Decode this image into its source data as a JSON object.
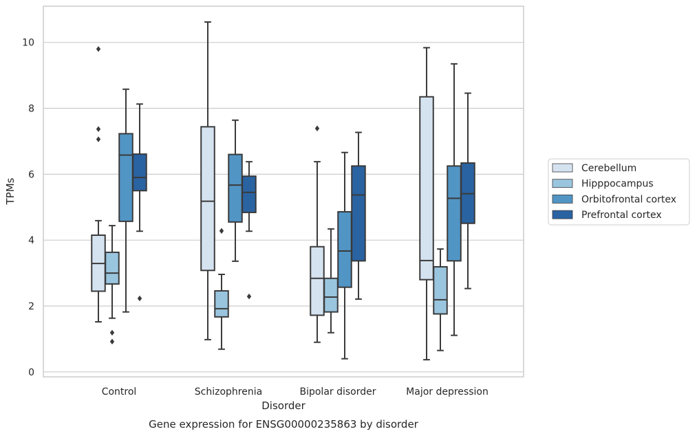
{
  "chart_data": {
    "type": "box",
    "caption": "Gene expression for ENSG00000235863 by disorder",
    "xlabel": "Disorder",
    "ylabel": "TPMs",
    "ylim": [
      -0.15,
      11.1
    ],
    "yticks": [
      0,
      2,
      4,
      6,
      8,
      10
    ],
    "grid": "horizontal",
    "legend_position": "right",
    "categories": [
      "Control",
      "Schizophrenia",
      "Bipolar disorder",
      "Major depression"
    ],
    "series": [
      {
        "name": "Cerebellum",
        "color": "#d5e3f1",
        "boxes": [
          {
            "whislo": 1.52,
            "q1": 2.45,
            "med": 3.29,
            "q3": 4.15,
            "whishi": 4.59,
            "fliers": [
              7.06,
              7.37,
              9.8
            ]
          },
          {
            "whislo": 0.98,
            "q1": 3.08,
            "med": 5.18,
            "q3": 7.44,
            "whishi": 10.62,
            "fliers": []
          },
          {
            "whislo": 0.9,
            "q1": 1.72,
            "med": 2.84,
            "q3": 3.8,
            "whishi": 6.38,
            "fliers": [
              7.39
            ]
          },
          {
            "whislo": 0.37,
            "q1": 2.8,
            "med": 3.38,
            "q3": 8.35,
            "whishi": 9.84,
            "fliers": []
          }
        ]
      },
      {
        "name": "Hipppocampus",
        "color": "#9ac5df",
        "boxes": [
          {
            "whislo": 1.63,
            "q1": 2.67,
            "med": 3.0,
            "q3": 3.63,
            "whishi": 4.44,
            "fliers": [
              0.92,
              1.19
            ]
          },
          {
            "whislo": 0.69,
            "q1": 1.67,
            "med": 1.92,
            "q3": 2.46,
            "whishi": 2.96,
            "fliers": [
              4.28
            ]
          },
          {
            "whislo": 1.19,
            "q1": 1.82,
            "med": 2.27,
            "q3": 2.84,
            "whishi": 4.34,
            "fliers": []
          },
          {
            "whislo": 0.65,
            "q1": 1.76,
            "med": 2.19,
            "q3": 3.19,
            "whishi": 3.73,
            "fliers": []
          }
        ]
      },
      {
        "name": "Orbitofrontal cortex",
        "color": "#5195c5",
        "boxes": [
          {
            "whislo": 1.82,
            "q1": 4.57,
            "med": 6.58,
            "q3": 7.23,
            "whishi": 8.58,
            "fliers": []
          },
          {
            "whislo": 3.36,
            "q1": 4.55,
            "med": 5.67,
            "q3": 6.6,
            "whishi": 7.64,
            "fliers": []
          },
          {
            "whislo": 0.4,
            "q1": 2.57,
            "med": 3.67,
            "q3": 4.86,
            "whishi": 6.66,
            "fliers": []
          },
          {
            "whislo": 1.11,
            "q1": 3.37,
            "med": 5.27,
            "q3": 6.25,
            "whishi": 9.35,
            "fliers": []
          }
        ]
      },
      {
        "name": "Prefrontal cortex",
        "color": "#2a63a2",
        "boxes": [
          {
            "whislo": 4.27,
            "q1": 5.5,
            "med": 5.9,
            "q3": 6.61,
            "whishi": 8.13,
            "fliers": [
              2.23
            ]
          },
          {
            "whislo": 4.27,
            "q1": 4.84,
            "med": 5.45,
            "q3": 5.94,
            "whishi": 6.38,
            "fliers": [
              2.29
            ]
          },
          {
            "whislo": 2.21,
            "q1": 3.37,
            "med": 5.37,
            "q3": 6.25,
            "whishi": 7.27,
            "fliers": []
          },
          {
            "whislo": 2.53,
            "q1": 4.51,
            "med": 5.41,
            "q3": 6.34,
            "whishi": 8.46,
            "fliers": []
          }
        ]
      }
    ]
  },
  "colors": {
    "grid": "#cccccc",
    "spine": "#cccccc",
    "box_edge": "#3a3a3a",
    "text": "#262626"
  }
}
